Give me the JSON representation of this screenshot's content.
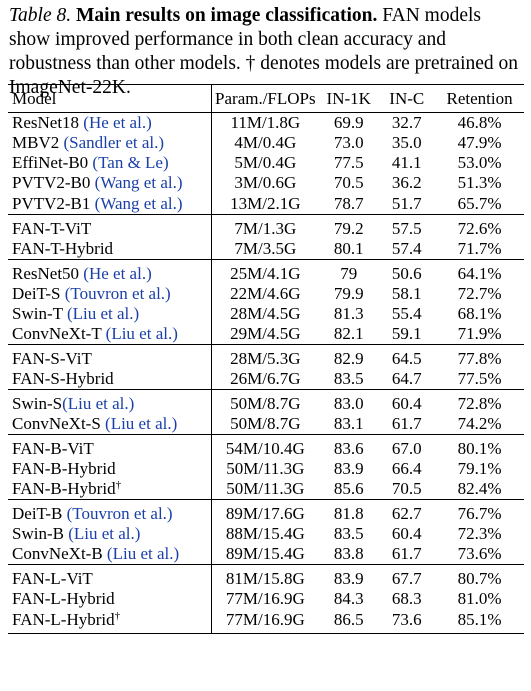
{
  "caption": {
    "label": "Table 8.",
    "title": "Main results on image classification.",
    "body": "FAN models show improved performance in both clean accuracy and robustness than other models. † denotes models are pretrained on ImageNet-22K."
  },
  "table": {
    "headers": {
      "model": "Model",
      "param": "Param./FLOPs",
      "in1k": "IN-1K",
      "inc": "IN-C",
      "retention": "Retention"
    },
    "rows": [
      {
        "name": "ResNet18",
        "cite": "(He et al.)",
        "dagger": "",
        "param": "11M/1.8G",
        "in1k": "69.9",
        "inc": "32.7",
        "retention": "46.8%",
        "bold": false,
        "group_start": true
      },
      {
        "name": "MBV2",
        "cite": "(Sandler et al.)",
        "dagger": "",
        "param": "4M/0.4G",
        "in1k": "73.0",
        "inc": "35.0",
        "retention": "47.9%",
        "bold": false,
        "group_start": false
      },
      {
        "name": "EffiNet-B0",
        "cite": "(Tan & Le)",
        "dagger": "",
        "param": "5M/0.4G",
        "in1k": "77.5",
        "inc": "41.1",
        "retention": "53.0%",
        "bold": false,
        "group_start": false
      },
      {
        "name": "PVTV2-B0",
        "cite": "(Wang et al.)",
        "dagger": "",
        "param": "3M/0.6G",
        "in1k": "70.5",
        "inc": "36.2",
        "retention": "51.3%",
        "bold": false,
        "group_start": false
      },
      {
        "name": "PVTV2-B1",
        "cite": "(Wang et al.)",
        "dagger": "",
        "param": "13M/2.1G",
        "in1k": "78.7",
        "inc": "51.7",
        "retention": "65.7%",
        "bold": false,
        "group_start": false
      },
      {
        "name": "FAN-T-ViT",
        "cite": "",
        "dagger": "",
        "param": "7M/1.3G",
        "in1k": "79.2",
        "inc": "57.5",
        "retention": "72.6%",
        "bold": true,
        "group_start": true
      },
      {
        "name": "FAN-T-Hybrid",
        "cite": "",
        "dagger": "",
        "param": "7M/3.5G",
        "in1k": "80.1",
        "inc": "57.4",
        "retention": "71.7%",
        "bold": false,
        "group_start": false
      },
      {
        "name": "ResNet50",
        "cite": "(He et al.)",
        "dagger": "",
        "param": "25M/4.1G",
        "in1k": "79",
        "inc": "50.6",
        "retention": "64.1%",
        "bold": false,
        "group_start": true
      },
      {
        "name": "DeiT-S",
        "cite": "(Touvron et al.)",
        "dagger": "",
        "param": "22M/4.6G",
        "in1k": "79.9",
        "inc": "58.1",
        "retention": "72.7%",
        "bold": false,
        "group_start": false
      },
      {
        "name": "Swin-T",
        "cite": "(Liu et al.)",
        "dagger": "",
        "param": "28M/4.5G",
        "in1k": "81.3",
        "inc": "55.4",
        "retention": "68.1%",
        "bold": false,
        "group_start": false
      },
      {
        "name": "ConvNeXt-T",
        "cite": "(Liu et al.)",
        "dagger": "",
        "param": "29M/4.5G",
        "in1k": "82.1",
        "inc": "59.1",
        "retention": "71.9%",
        "bold": false,
        "group_start": false
      },
      {
        "name": "FAN-S-ViT",
        "cite": "",
        "dagger": "",
        "param": "28M/5.3G",
        "in1k": "82.9",
        "inc": "64.5",
        "retention": "77.8%",
        "bold": true,
        "group_start": true
      },
      {
        "name": "FAN-S-Hybrid",
        "cite": "",
        "dagger": "",
        "param": "26M/6.7G",
        "in1k": "83.5",
        "inc": "64.7",
        "retention": "77.5%",
        "bold": false,
        "group_start": false
      },
      {
        "name": "Swin-S",
        "cite": "(Liu et al.)",
        "dagger": "",
        "param": "50M/8.7G",
        "in1k": "83.0",
        "inc": "60.4",
        "retention": "72.8%",
        "bold": false,
        "group_start": true,
        "nospace": true
      },
      {
        "name": "ConvNeXt-S",
        "cite": "(Liu et al.)",
        "dagger": "",
        "param": "50M/8.7G",
        "in1k": "83.1",
        "inc": "61.7",
        "retention": "74.2%",
        "bold": false,
        "group_start": false
      },
      {
        "name": "FAN-B-ViT",
        "cite": "",
        "dagger": "",
        "param": "54M/10.4G",
        "in1k": "83.6",
        "inc": "67.0",
        "retention": "80.1%",
        "bold": false,
        "group_start": true
      },
      {
        "name": "FAN-B-Hybrid",
        "cite": "",
        "dagger": "",
        "param": "50M/11.3G",
        "in1k": "83.9",
        "inc": "66.4",
        "retention": "79.1%",
        "bold": false,
        "group_start": false
      },
      {
        "name": "FAN-B-Hybrid",
        "cite": "",
        "dagger": "†",
        "param": "50M/11.3G",
        "in1k": "85.6",
        "inc": "70.5",
        "retention": "82.4%",
        "bold": true,
        "group_start": false
      },
      {
        "name": "DeiT-B",
        "cite": "(Touvron et al.)",
        "dagger": "",
        "param": "89M/17.6G",
        "in1k": "81.8",
        "inc": "62.7",
        "retention": "76.7%",
        "bold": false,
        "group_start": true
      },
      {
        "name": "Swin-B",
        "cite": "(Liu et al.)",
        "dagger": "",
        "param": "88M/15.4G",
        "in1k": "83.5",
        "inc": "60.4",
        "retention": "72.3%",
        "bold": false,
        "group_start": false
      },
      {
        "name": "ConvNeXt-B",
        "cite": "(Liu et al.)",
        "dagger": "",
        "param": "89M/15.4G",
        "in1k": "83.8",
        "inc": "61.7",
        "retention": "73.6%",
        "bold": false,
        "group_start": false
      },
      {
        "name": "FAN-L-ViT",
        "cite": "",
        "dagger": "",
        "param": "81M/15.8G",
        "in1k": "83.9",
        "inc": "67.7",
        "retention": "80.7%",
        "bold": false,
        "group_start": true
      },
      {
        "name": "FAN-L-Hybrid",
        "cite": "",
        "dagger": "",
        "param": "77M/16.9G",
        "in1k": "84.3",
        "inc": "68.3",
        "retention": "81.0%",
        "bold": false,
        "group_start": false
      },
      {
        "name": "FAN-L-Hybrid",
        "cite": "",
        "dagger": "†",
        "param": "77M/16.9G",
        "in1k": "86.5",
        "inc": "73.6",
        "retention": "85.1%",
        "bold": true,
        "group_start": false
      }
    ]
  }
}
